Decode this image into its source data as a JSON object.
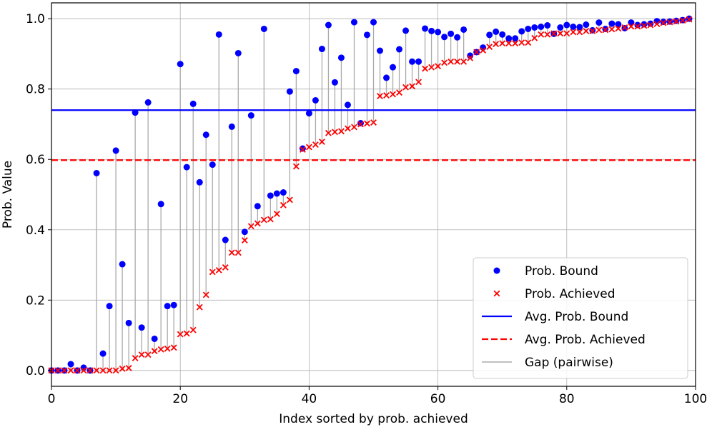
{
  "chart_data": {
    "type": "scatter",
    "xlabel": "Index sorted by prob. achieved",
    "ylabel": "Prob. Value",
    "xlim": [
      0,
      100
    ],
    "ylim": [
      -0.045,
      1.045
    ],
    "xticks": [
      0,
      20,
      40,
      60,
      80,
      100
    ],
    "yticks": [
      0.0,
      0.2,
      0.4,
      0.6,
      0.8,
      1.0
    ],
    "xtick_labels": [
      "0",
      "20",
      "40",
      "60",
      "80",
      "100"
    ],
    "ytick_labels": [
      "0.0",
      "0.2",
      "0.4",
      "0.6",
      "0.8",
      "1.0"
    ],
    "grid": true,
    "legend_position": "lower-right",
    "series": [
      {
        "name": "Prob. Bound",
        "marker": "circle",
        "color": "#0000ff",
        "x": [
          0,
          1,
          2,
          3,
          4,
          5,
          6,
          7,
          8,
          9,
          10,
          11,
          12,
          13,
          14,
          15,
          16,
          17,
          18,
          19,
          20,
          21,
          22,
          23,
          24,
          25,
          26,
          27,
          28,
          29,
          30,
          31,
          32,
          33,
          34,
          35,
          36,
          37,
          38,
          39,
          40,
          41,
          42,
          43,
          44,
          45,
          46,
          47,
          48,
          49,
          50,
          51,
          52,
          53,
          54,
          55,
          56,
          57,
          58,
          59,
          60,
          61,
          62,
          63,
          64,
          65,
          66,
          67,
          68,
          69,
          70,
          71,
          72,
          73,
          74,
          75,
          76,
          77,
          78,
          79,
          80,
          81,
          82,
          83,
          84,
          85,
          86,
          87,
          88,
          89,
          90,
          91,
          92,
          93,
          94,
          95,
          96,
          97,
          98,
          99
        ],
        "values": [
          0.0,
          0.0,
          0.0,
          0.018,
          0.0,
          0.008,
          0.0,
          0.561,
          0.048,
          0.183,
          0.625,
          0.302,
          0.135,
          0.733,
          0.122,
          0.762,
          0.09,
          0.473,
          0.183,
          0.186,
          0.871,
          0.578,
          0.758,
          0.535,
          0.67,
          0.585,
          0.955,
          0.371,
          0.693,
          0.902,
          0.394,
          0.725,
          0.467,
          0.971,
          0.497,
          0.503,
          0.506,
          0.793,
          0.851,
          0.631,
          0.731,
          0.768,
          0.914,
          0.982,
          0.819,
          0.889,
          0.755,
          0.99,
          0.703,
          0.954,
          0.99,
          0.909,
          0.832,
          0.862,
          0.913,
          0.966,
          0.878,
          0.878,
          0.972,
          0.965,
          0.962,
          0.948,
          0.957,
          0.947,
          0.969,
          0.895,
          0.905,
          0.918,
          0.954,
          0.963,
          0.955,
          0.944,
          0.944,
          0.964,
          0.971,
          0.975,
          0.977,
          0.981,
          0.957,
          0.975,
          0.982,
          0.977,
          0.976,
          0.983,
          0.967,
          0.989,
          0.971,
          0.986,
          0.984,
          0.973,
          0.989,
          0.982,
          0.984,
          0.986,
          0.993,
          0.991,
          0.992,
          0.994,
          0.996,
          1.0
        ]
      },
      {
        "name": "Prob. Achieved",
        "marker": "x",
        "color": "#ff0000",
        "x": [
          0,
          1,
          2,
          3,
          4,
          5,
          6,
          7,
          8,
          9,
          10,
          11,
          12,
          13,
          14,
          15,
          16,
          17,
          18,
          19,
          20,
          21,
          22,
          23,
          24,
          25,
          26,
          27,
          28,
          29,
          30,
          31,
          32,
          33,
          34,
          35,
          36,
          37,
          38,
          39,
          40,
          41,
          42,
          43,
          44,
          45,
          46,
          47,
          48,
          49,
          50,
          51,
          52,
          53,
          54,
          55,
          56,
          57,
          58,
          59,
          60,
          61,
          62,
          63,
          64,
          65,
          66,
          67,
          68,
          69,
          70,
          71,
          72,
          73,
          74,
          75,
          76,
          77,
          78,
          79,
          80,
          81,
          82,
          83,
          84,
          85,
          86,
          87,
          88,
          89,
          90,
          91,
          92,
          93,
          94,
          95,
          96,
          97,
          98,
          99
        ],
        "values": [
          0.0,
          0.0,
          0.0,
          0.0,
          0.0,
          0.0,
          0.0,
          0.0,
          0.0,
          0.0,
          0.0,
          0.005,
          0.007,
          0.035,
          0.045,
          0.045,
          0.055,
          0.06,
          0.062,
          0.065,
          0.103,
          0.105,
          0.115,
          0.18,
          0.215,
          0.28,
          0.285,
          0.293,
          0.335,
          0.335,
          0.37,
          0.41,
          0.418,
          0.428,
          0.43,
          0.445,
          0.47,
          0.485,
          0.58,
          0.628,
          0.635,
          0.642,
          0.65,
          0.675,
          0.678,
          0.68,
          0.688,
          0.692,
          0.7,
          0.702,
          0.705,
          0.78,
          0.782,
          0.785,
          0.79,
          0.805,
          0.808,
          0.82,
          0.858,
          0.862,
          0.865,
          0.875,
          0.878,
          0.878,
          0.878,
          0.888,
          0.905,
          0.91,
          0.92,
          0.928,
          0.93,
          0.93,
          0.93,
          0.932,
          0.932,
          0.945,
          0.955,
          0.955,
          0.958,
          0.958,
          0.958,
          0.962,
          0.962,
          0.965,
          0.965,
          0.968,
          0.968,
          0.97,
          0.972,
          0.975,
          0.978,
          0.978,
          0.98,
          0.982,
          0.985,
          0.988,
          0.99,
          0.992,
          0.995,
          0.998
        ]
      },
      {
        "name": "Avg. Prob. Bound",
        "type": "hline",
        "style": "solid",
        "color": "#0000ff",
        "y": 0.74
      },
      {
        "name": "Avg. Prob. Achieved",
        "type": "hline",
        "style": "dashed",
        "color": "#ff0000",
        "y": 0.598
      },
      {
        "name": "Gap (pairwise)",
        "type": "vlines",
        "color": "#aaaaaa"
      }
    ],
    "legend": [
      {
        "label": "Prob. Bound",
        "kind": "dot",
        "color": "#0000ff"
      },
      {
        "label": "Prob. Achieved",
        "kind": "x",
        "color": "#ff0000"
      },
      {
        "label": "Avg. Prob. Bound",
        "kind": "solid",
        "color": "#0000ff"
      },
      {
        "label": "Avg. Prob. Achieved",
        "kind": "dashed",
        "color": "#ff0000"
      },
      {
        "label": "Gap (pairwise)",
        "kind": "solid",
        "color": "#aaaaaa"
      }
    ]
  }
}
